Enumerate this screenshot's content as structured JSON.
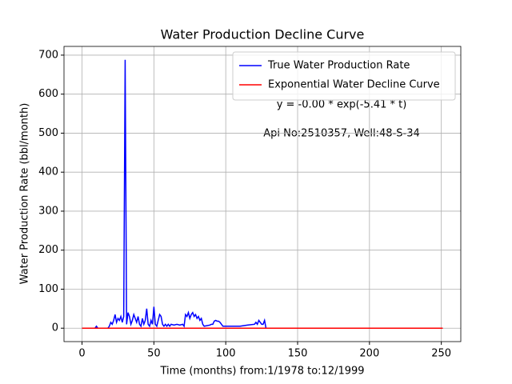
{
  "chart_data": {
    "type": "line",
    "title": "Water Production Decline Curve",
    "xlabel": "Time (months) from:1/1978 to:12/1999",
    "ylabel": "Water Production Rate (bbl/month)",
    "annotations": [
      "y = -0.00 * exp(-5.41 * t)",
      "Api No:2510357, Well:48-S-34"
    ],
    "xlim": [
      -12.55,
      263.55
    ],
    "ylim": [
      -34.4,
      722.4
    ],
    "xticks": [
      0,
      50,
      100,
      150,
      200,
      250
    ],
    "yticks": [
      0,
      100,
      200,
      300,
      400,
      500,
      600,
      700
    ],
    "grid": true,
    "legend": "upper right",
    "series": [
      {
        "name": "True Water Production Rate",
        "color": "#0000ff",
        "x": [
          0,
          9,
          10,
          11,
          18,
          19,
          20,
          21,
          22,
          23,
          24,
          25,
          26,
          27,
          28,
          29,
          30,
          31,
          32,
          33,
          34,
          35,
          36,
          37,
          38,
          39,
          40,
          41,
          42,
          43,
          44,
          45,
          46,
          47,
          48,
          49,
          50,
          51,
          52,
          53,
          54,
          55,
          56,
          57,
          58,
          59,
          60,
          61,
          62,
          64,
          66,
          68,
          70,
          71,
          72,
          73,
          74,
          75,
          76,
          77,
          78,
          79,
          80,
          81,
          82,
          83,
          84,
          85,
          89,
          90,
          91,
          92,
          93,
          94,
          95,
          96,
          97,
          98,
          110,
          115,
          120,
          121,
          122,
          123,
          124,
          125,
          126,
          127,
          128,
          251
        ],
        "values": [
          0,
          0,
          5,
          0,
          0,
          5,
          15,
          10,
          20,
          35,
          15,
          25,
          20,
          30,
          15,
          30,
          688,
          10,
          40,
          30,
          10,
          20,
          35,
          25,
          15,
          30,
          10,
          5,
          25,
          10,
          20,
          50,
          10,
          5,
          20,
          10,
          55,
          10,
          5,
          20,
          35,
          30,
          10,
          5,
          10,
          5,
          10,
          5,
          10,
          8,
          10,
          8,
          10,
          5,
          35,
          30,
          40,
          25,
          35,
          40,
          30,
          35,
          25,
          30,
          20,
          25,
          10,
          5,
          8,
          10,
          10,
          18,
          20,
          18,
          18,
          15,
          10,
          5,
          5,
          8,
          10,
          15,
          10,
          20,
          15,
          10,
          10,
          20,
          0,
          0
        ]
      },
      {
        "name": "Exponential Water Decline Curve",
        "color": "#ff0000",
        "x": [
          0,
          251
        ],
        "values": [
          0,
          0
        ]
      }
    ]
  }
}
